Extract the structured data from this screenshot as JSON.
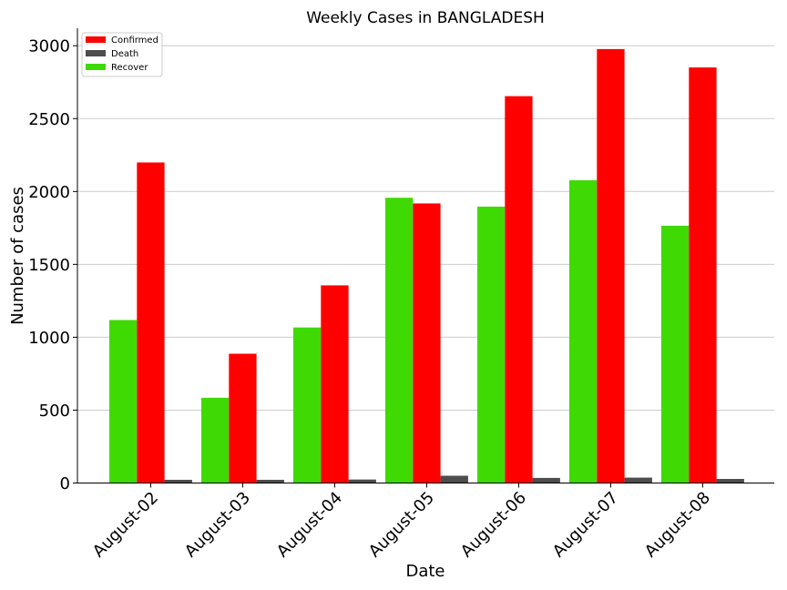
{
  "chart_data": {
    "type": "bar",
    "title": "Weekly Cases in BANGLADESH",
    "xlabel": "Date",
    "ylabel": "Number of cases",
    "categories": [
      "August-02",
      "August-03",
      "August-04",
      "August-05",
      "August-06",
      "August-07",
      "August-08"
    ],
    "series": [
      {
        "name": "Recover",
        "color": "#3fd904",
        "values": [
          1118,
          585,
          1067,
          1957,
          1896,
          2077,
          1765
        ]
      },
      {
        "name": "Confirmed",
        "color": "#ff0000",
        "values": [
          2199,
          887,
          1356,
          1918,
          2654,
          2977,
          2851
        ]
      },
      {
        "name": "Death",
        "color": "#4d4d4d",
        "values": [
          22,
          22,
          24,
          50,
          35,
          37,
          28
        ]
      }
    ],
    "legend_order": [
      "Confirmed",
      "Death",
      "Recover"
    ],
    "legend_position": "top-left",
    "ylim": [
      0,
      3120
    ],
    "yticks": [
      0,
      500,
      1000,
      1500,
      2000,
      2500,
      3000
    ],
    "grid": "y"
  }
}
